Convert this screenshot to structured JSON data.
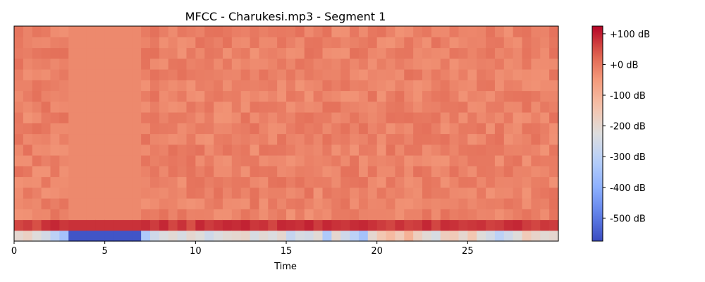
{
  "chart_data": {
    "type": "heatmap",
    "title": "MFCC - Charukesi.mp3 - Segment 1",
    "xlabel": "Time",
    "ylabel": "",
    "xlim": [
      0,
      30
    ],
    "x_ticks": [
      0,
      5,
      10,
      15,
      20,
      25
    ],
    "x_tick_labels": [
      "0",
      "5",
      "10",
      "15",
      "20",
      "25"
    ],
    "n_coefficients": 20,
    "n_frames": 60,
    "colormap": "coolwarm",
    "colorbar": {
      "range_db": [
        -575,
        125
      ],
      "ticks": [
        100,
        0,
        -100,
        -200,
        -300,
        -400,
        -500
      ],
      "tick_labels": [
        "+100 dB",
        "+0 dB",
        "-100 dB",
        "-200 dB",
        "-300 dB",
        "-400 dB",
        "-500 dB"
      ]
    },
    "value_summary": {
      "coefficient_0_db": [
        -200,
        -180,
        -220,
        -250,
        -300,
        -350,
        -560,
        -560,
        -560,
        -560,
        -560,
        -560,
        -560,
        -560,
        -330,
        -260,
        -230,
        -210,
        -240,
        -200,
        -220,
        -260,
        -230,
        -210,
        -200,
        -190,
        -240,
        -210,
        -230,
        -200,
        -280,
        -240,
        -250,
        -210,
        -330,
        -200,
        -260,
        -300,
        -350,
        -200,
        -150,
        -120,
        -160,
        -100,
        -170,
        -210,
        -240,
        -170,
        -160,
        -200,
        -150,
        -220,
        -250,
        -300,
        -260,
        -220,
        -160,
        -190,
        -210,
        -200
      ],
      "coefficient_1_db": [
        60,
        70,
        50,
        80,
        90,
        75,
        80,
        80,
        80,
        80,
        80,
        80,
        80,
        80,
        85,
        70,
        90,
        60,
        80,
        50,
        90,
        70,
        80,
        90,
        85,
        95,
        75,
        80,
        60,
        90,
        85,
        80,
        95,
        70,
        90,
        80,
        75,
        85,
        90,
        80,
        70,
        60,
        80,
        65,
        70,
        90,
        60,
        85,
        80,
        70,
        75,
        80,
        65,
        70,
        85,
        90,
        70,
        60,
        75,
        70
      ],
      "upper_coefficients_typical_db": [
        -40,
        10
      ],
      "silent_region_time": [
        3.1,
        7.1
      ],
      "silent_region_upper_db": -25
    }
  }
}
